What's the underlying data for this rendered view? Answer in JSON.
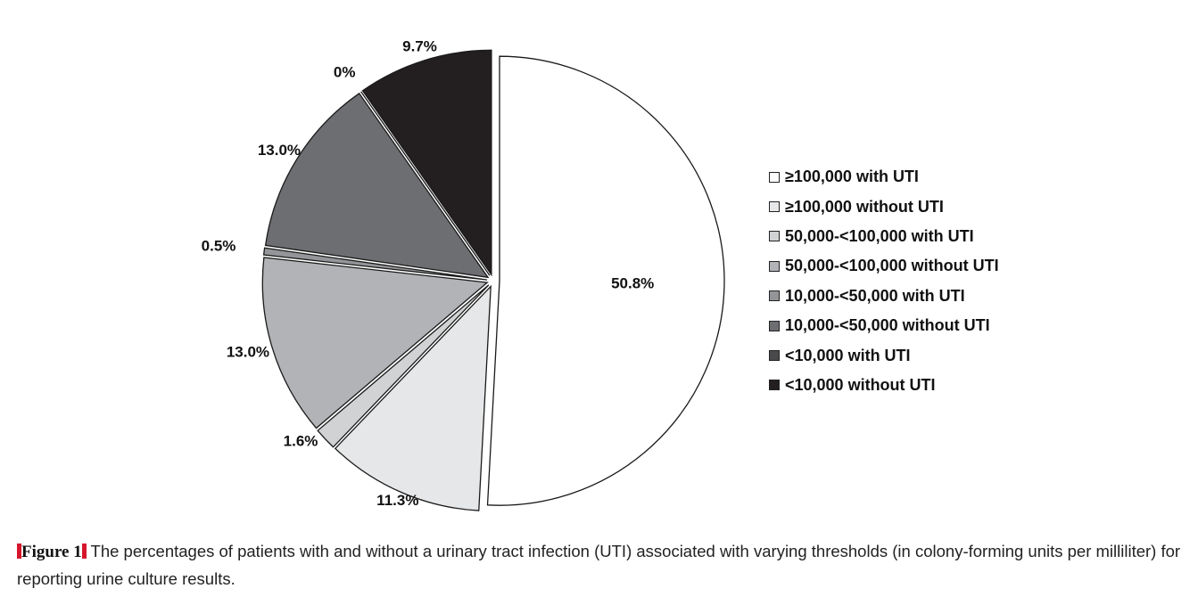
{
  "chart_data": {
    "type": "pie",
    "title": "",
    "legend_position": "right",
    "slices": [
      {
        "name": "≥100,000 with UTI",
        "value": 50.8,
        "label": "50.8%",
        "color": "#ffffff"
      },
      {
        "name": "≥100,000 without UTI",
        "value": 11.3,
        "label": "11.3%",
        "color": "#e6e7e8"
      },
      {
        "name": "50,000-<100,000 with UTI",
        "value": 1.6,
        "label": "1.6%",
        "color": "#d0d2d3"
      },
      {
        "name": "50,000-<100,000 without UTI",
        "value": 13.0,
        "label": "13.0%",
        "color": "#b1b3b6"
      },
      {
        "name": "10,000-<50,000 with UTI",
        "value": 0.5,
        "label": "0.5%",
        "color": "#939598"
      },
      {
        "name": "10,000-<50,000 without UTI",
        "value": 13.0,
        "label": "13.0%",
        "color": "#6d6e71"
      },
      {
        "name": "<10,000 with UTI",
        "value": 0,
        "label": "0%",
        "color": "#4a4a4c"
      },
      {
        "name": "<10,000 without UTI",
        "value": 9.7,
        "label": "9.7%",
        "color": "#231f20"
      }
    ]
  },
  "caption": {
    "label": "Figure 1",
    "text": " The percentages of patients with and without a urinary tract infection (UTI) associated with varying thresholds (in colony-forming units per milliliter) for reporting urine culture results."
  }
}
